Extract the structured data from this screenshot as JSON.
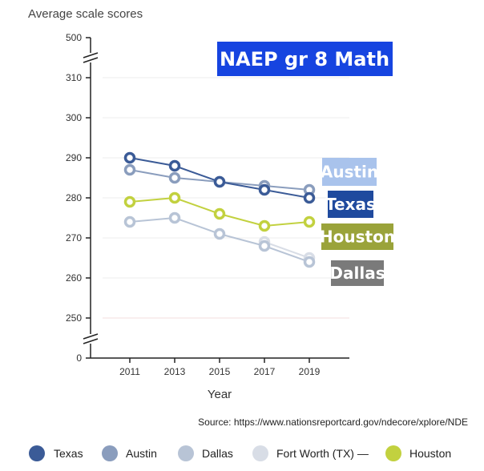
{
  "chart_data": {
    "type": "line",
    "title": "NAEP gr 8 Math",
    "ylabel": "Average scale scores",
    "xlabel": "Year",
    "source": "Source: https://www.nationsreportcard.gov/ndecore/xplore/NDE",
    "x": [
      "2011",
      "2013",
      "2015",
      "2017",
      "2019"
    ],
    "y_ticks": [
      "500",
      "310",
      "300",
      "290",
      "280",
      "270",
      "260",
      "250",
      "0"
    ],
    "ylim": [
      250,
      310
    ],
    "axis_breaks": true,
    "grid": true,
    "legend_position": "bottom",
    "series": [
      {
        "name": "Texas",
        "color": "#3b5b97",
        "values": [
          290,
          288,
          284,
          282,
          280
        ]
      },
      {
        "name": "Austin",
        "color": "#8a9dbd",
        "values": [
          287,
          285,
          284,
          283,
          282
        ]
      },
      {
        "name": "Dallas",
        "color": "#b8c4d6",
        "values": [
          274,
          275,
          271,
          268,
          264
        ]
      },
      {
        "name": "Fort Worth (TX) —",
        "color": "#d8dde6",
        "values": [
          null,
          null,
          null,
          269,
          265
        ]
      },
      {
        "name": "Houston",
        "color": "#c2d13f",
        "values": [
          279,
          280,
          276,
          273,
          274
        ]
      }
    ],
    "annotations": [
      {
        "text": "Austin",
        "color": "#a9c3ec"
      },
      {
        "text": "Texas",
        "color": "#1f4a9e"
      },
      {
        "text": "Houston",
        "color": "#9aa33a"
      },
      {
        "text": "Dallas",
        "color": "#7a7a7a"
      }
    ],
    "title_color": "#1644e0"
  }
}
